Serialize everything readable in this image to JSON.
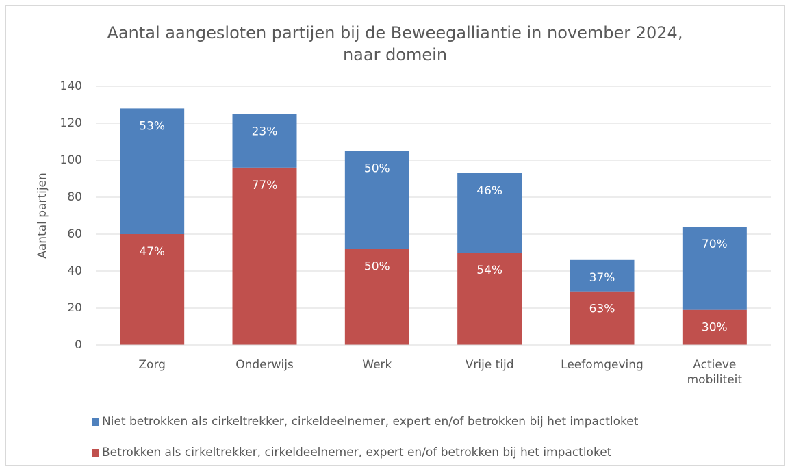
{
  "chart_data": {
    "type": "stacked_bar",
    "title": "Aantal aangesloten partijen bij de Beweegalliantie in november 2024, naar domein",
    "y_label": "Aantal partijen",
    "categories": [
      "Zorg",
      "Onderwijs",
      "Werk",
      "Vrije tijd",
      "Leefomgeving",
      "Actieve mobiliteit"
    ],
    "series": [
      {
        "name": "Betrokken als cirkeltrekker, cirkeldeelnemer, expert en/of betrokken bij het impactloket",
        "color": "#c0504d",
        "values": [
          60,
          96,
          52,
          50,
          29,
          19
        ],
        "share_labels": [
          "47%",
          "77%",
          "50%",
          "54%",
          "63%",
          "30%"
        ]
      },
      {
        "name": "Niet betrokken als cirkeltrekker, cirkeldeelnemer, expert en/of betrokken bij het impactloket",
        "color": "#4f81bd",
        "values": [
          68,
          29,
          53,
          43,
          17,
          45
        ],
        "share_labels": [
          "53%",
          "23%",
          "50%",
          "46%",
          "37%",
          "70%"
        ]
      }
    ],
    "ylim": [
      0,
      140
    ],
    "yticks": [
      0,
      20,
      40,
      60,
      80,
      100,
      120,
      140
    ],
    "grid": true
  }
}
